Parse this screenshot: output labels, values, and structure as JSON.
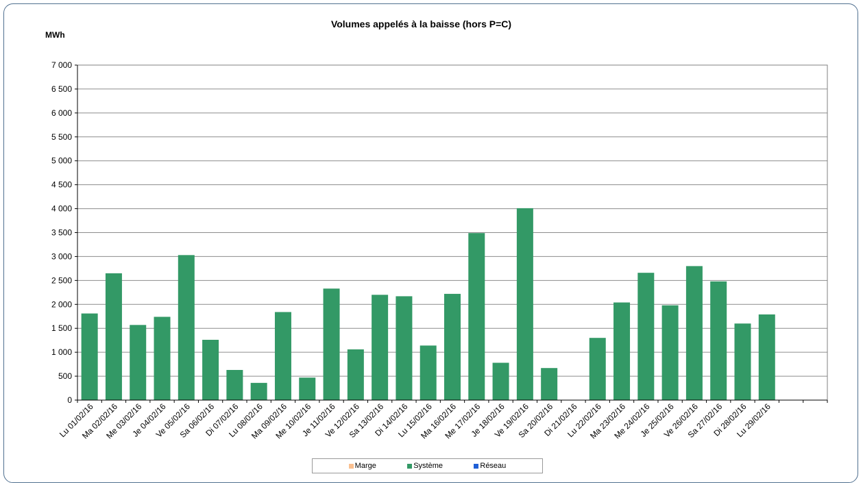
{
  "chart_data": {
    "type": "bar",
    "title": "Volumes appelés à la baisse (hors P=C)",
    "ylabel": "MWh",
    "xlabel": "",
    "ylim": [
      0,
      7000
    ],
    "yticks": [
      "0",
      "500",
      "1 000",
      "1 500",
      "2 000",
      "2 500",
      "3 000",
      "3 500",
      "4 000",
      "4 500",
      "5 000",
      "5 500",
      "6 000",
      "6 500",
      "7 000"
    ],
    "ytick_values": [
      0,
      500,
      1000,
      1500,
      2000,
      2500,
      3000,
      3500,
      4000,
      4500,
      5000,
      5500,
      6000,
      6500,
      7000
    ],
    "grid": true,
    "legend_position": "bottom",
    "categories": [
      "Lu 01/02/16",
      "Ma 02/02/16",
      "Me 03/02/16",
      "Je 04/02/16",
      "Ve 05/02/16",
      "Sa 06/02/16",
      "Di 07/02/16",
      "Lu 08/02/16",
      "Ma 09/02/16",
      "Me 10/02/16",
      "Je 11/02/16",
      "Ve 12/02/16",
      "Sa 13/02/16",
      "Di 14/02/16",
      "Lu 15/02/16",
      "Ma 16/02/16",
      "Me 17/02/16",
      "Je 18/02/16",
      "Ve 19/02/16",
      "Sa 20/02/16",
      "Di 21/02/16",
      "Lu 22/02/16",
      "Ma 23/02/16",
      "Me 24/02/16",
      "Je 25/02/16",
      "Ve 26/02/16",
      "Sa 27/02/16",
      "Di 28/02/16",
      "Lu 29/02/16",
      "",
      ""
    ],
    "series": [
      {
        "name": "Marge",
        "color": "#fac090",
        "values": [
          0,
          0,
          0,
          0,
          0,
          0,
          0,
          0,
          0,
          0,
          0,
          0,
          0,
          0,
          0,
          0,
          0,
          0,
          0,
          0,
          0,
          0,
          0,
          0,
          0,
          0,
          0,
          0,
          0,
          0,
          0
        ]
      },
      {
        "name": "Système",
        "color": "#339966",
        "values": [
          1810,
          2650,
          1570,
          1740,
          3030,
          1260,
          630,
          360,
          1840,
          470,
          2330,
          1060,
          2200,
          2170,
          1140,
          2220,
          3490,
          780,
          4010,
          670,
          0,
          1300,
          2040,
          2660,
          1980,
          2800,
          2480,
          1600,
          1790,
          0,
          0
        ]
      },
      {
        "name": "Réseau",
        "color": "#1f5fd6",
        "values": [
          0,
          0,
          0,
          0,
          0,
          0,
          0,
          0,
          0,
          0,
          0,
          0,
          0,
          0,
          0,
          0,
          0,
          0,
          0,
          0,
          0,
          0,
          0,
          0,
          0,
          0,
          0,
          0,
          0,
          0,
          0
        ]
      }
    ]
  }
}
